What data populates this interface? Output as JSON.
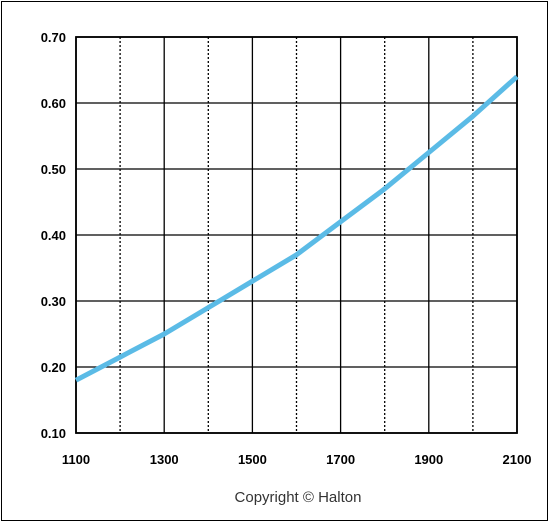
{
  "chart_data": {
    "type": "line",
    "title": "",
    "xlabel": "",
    "ylabel": "",
    "xlim": [
      1100,
      2100
    ],
    "ylim": [
      0.1,
      0.7
    ],
    "x_ticks": [
      "1100",
      "1300",
      "1500",
      "1700",
      "1900",
      "2100"
    ],
    "y_ticks": [
      "0.10",
      "0.20",
      "0.30",
      "0.40",
      "0.50",
      "0.60",
      "0.70"
    ],
    "x_grid_step": 100,
    "y_grid_step": 0.1,
    "grid": true,
    "series": [
      {
        "color": "#5bbbe6",
        "x": [
          1100,
          1200,
          1300,
          1400,
          1500,
          1600,
          1700,
          1800,
          1900,
          2000,
          2100
        ],
        "y": [
          0.18,
          0.215,
          0.25,
          0.29,
          0.33,
          0.37,
          0.42,
          0.47,
          0.525,
          0.58,
          0.64
        ]
      }
    ]
  },
  "footer": {
    "copyright": "Copyright © Halton"
  }
}
